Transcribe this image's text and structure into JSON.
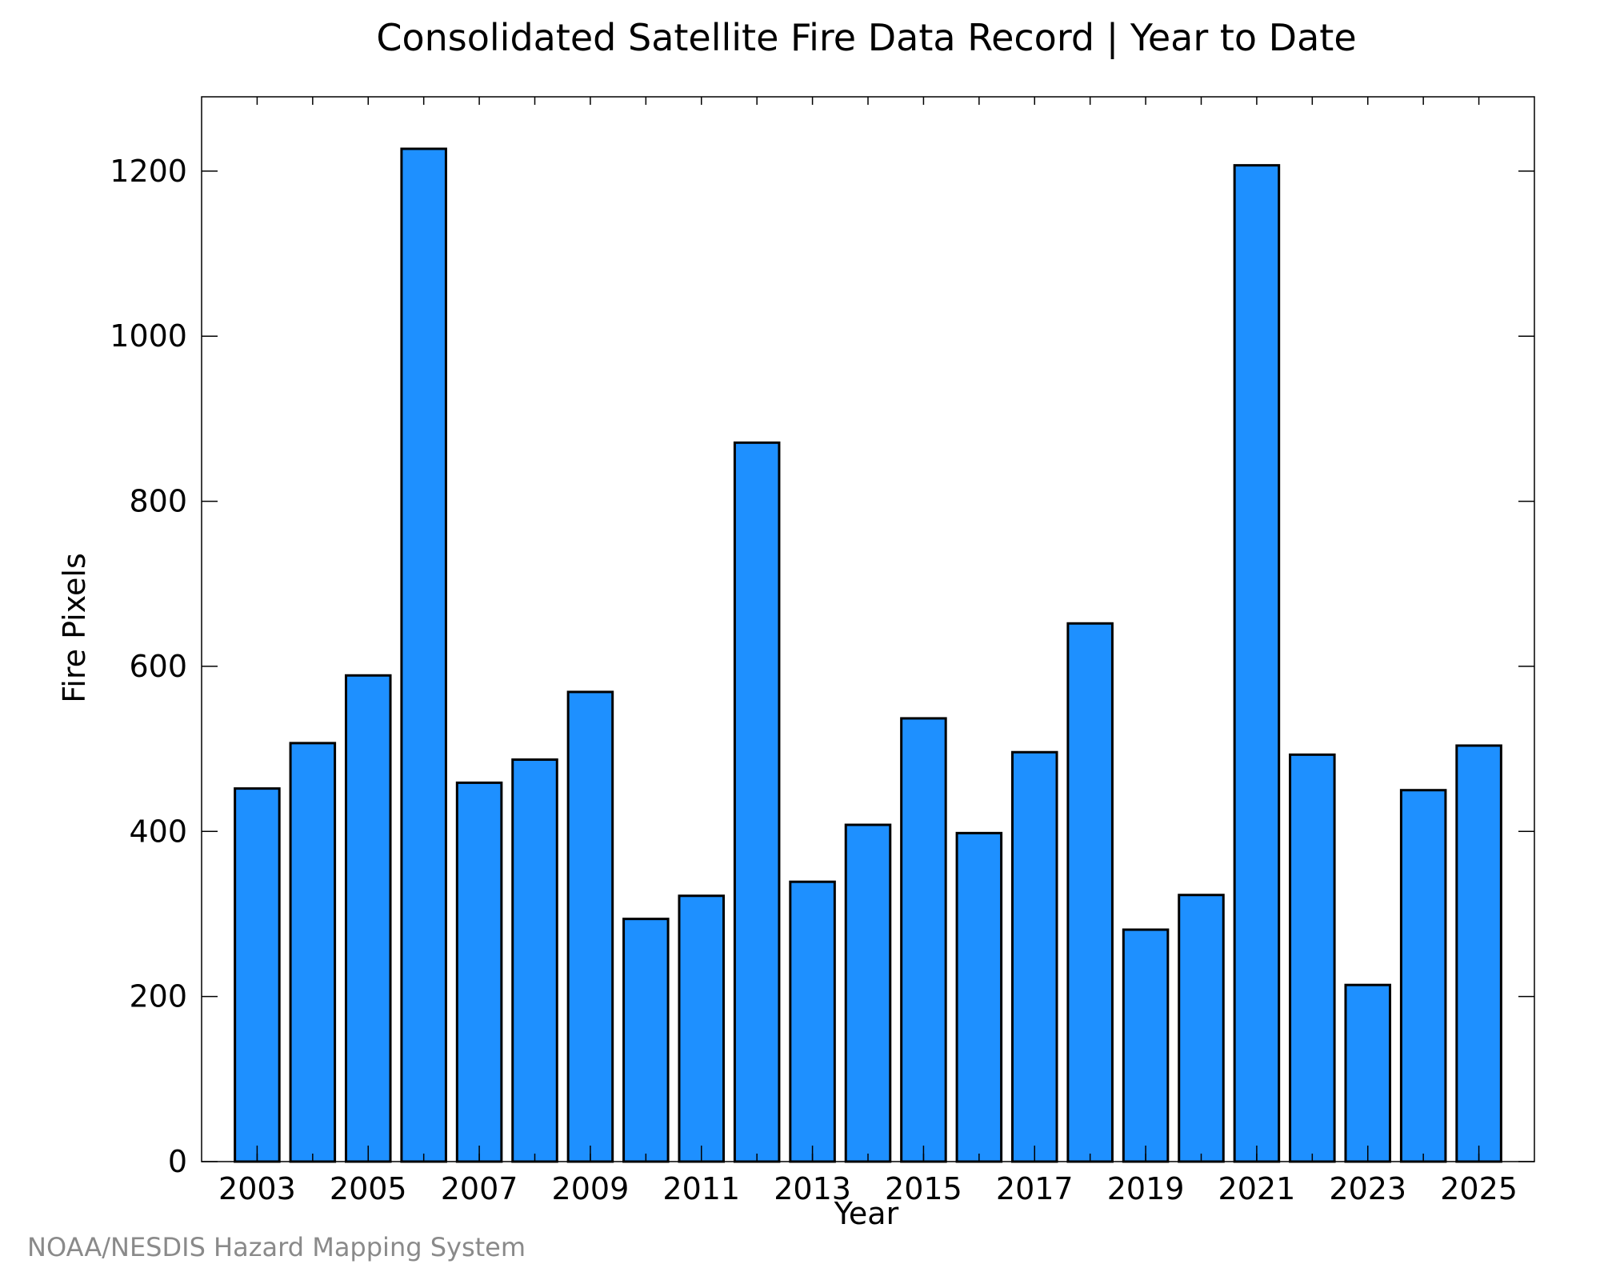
{
  "chart_data": {
    "type": "bar",
    "title": "Consolidated Satellite Fire Data Record | Year to Date",
    "xlabel": "Year",
    "ylabel": "Fire Pixels",
    "categories": [
      "2003",
      "2004",
      "2005",
      "2006",
      "2007",
      "2008",
      "2009",
      "2010",
      "2011",
      "2012",
      "2013",
      "2014",
      "2015",
      "2016",
      "2017",
      "2018",
      "2019",
      "2020",
      "2021",
      "2022",
      "2023",
      "2024",
      "2025"
    ],
    "x_tick_labels": [
      "2003",
      "2005",
      "2007",
      "2009",
      "2011",
      "2013",
      "2015",
      "2017",
      "2019",
      "2021",
      "2023",
      "2025"
    ],
    "y_ticks": [
      0,
      200,
      400,
      600,
      800,
      1000,
      1200
    ],
    "values": [
      452,
      507,
      589,
      1227,
      459,
      487,
      569,
      294,
      322,
      871,
      339,
      408,
      537,
      398,
      496,
      652,
      281,
      323,
      1207,
      493,
      214,
      450,
      504
    ],
    "ylim": [
      0,
      1290
    ],
    "grid": false,
    "bar_color": "#1e90ff",
    "bar_edge_color": "#000000"
  },
  "credit": "NOAA/NESDIS Hazard Mapping System"
}
